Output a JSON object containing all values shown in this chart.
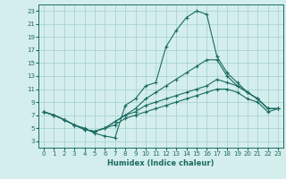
{
  "title": "",
  "xlabel": "Humidex (Indice chaleur)",
  "bg_color": "#d4eeed",
  "grid_color": "#a8d4d0",
  "line_color": "#1a6b60",
  "xlim": [
    -0.5,
    23.5
  ],
  "ylim": [
    2,
    24
  ],
  "xticks": [
    0,
    1,
    2,
    3,
    4,
    5,
    6,
    7,
    8,
    9,
    10,
    11,
    12,
    13,
    14,
    15,
    16,
    17,
    18,
    19,
    20,
    21,
    22,
    23
  ],
  "yticks": [
    3,
    5,
    7,
    9,
    11,
    13,
    15,
    17,
    19,
    21,
    23
  ],
  "curves": [
    {
      "x": [
        0,
        1,
        2,
        3,
        4,
        5,
        6,
        7,
        8,
        9,
        10,
        11,
        12,
        13,
        14,
        15,
        16,
        17,
        18,
        19,
        20,
        21,
        22,
        23
      ],
      "y": [
        7.5,
        7.0,
        6.3,
        5.5,
        5.0,
        4.2,
        3.8,
        3.5,
        8.5,
        9.5,
        11.5,
        12.0,
        17.5,
        20.0,
        22.0,
        23.0,
        22.5,
        16.0,
        13.5,
        12.0,
        10.5,
        9.5,
        8.0,
        8.0
      ]
    },
    {
      "x": [
        0,
        1,
        2,
        3,
        4,
        5,
        6,
        7,
        8,
        9,
        10,
        11,
        12,
        13,
        14,
        15,
        16,
        17,
        18,
        19,
        20,
        21,
        22,
        23
      ],
      "y": [
        7.5,
        7.0,
        6.3,
        5.5,
        4.8,
        4.5,
        5.0,
        6.0,
        7.0,
        8.0,
        9.5,
        10.5,
        11.5,
        12.5,
        13.5,
        14.5,
        15.5,
        15.5,
        13.0,
        11.5,
        10.5,
        9.5,
        8.0,
        8.0
      ]
    },
    {
      "x": [
        0,
        1,
        2,
        3,
        4,
        5,
        6,
        7,
        8,
        9,
        10,
        11,
        12,
        13,
        14,
        15,
        16,
        17,
        18,
        19,
        20,
        21,
        22,
        23
      ],
      "y": [
        7.5,
        7.0,
        6.3,
        5.5,
        4.8,
        4.5,
        5.0,
        6.0,
        7.0,
        7.5,
        8.5,
        9.0,
        9.5,
        10.0,
        10.5,
        11.0,
        11.5,
        12.5,
        12.0,
        11.5,
        10.5,
        9.5,
        8.0,
        8.0
      ]
    },
    {
      "x": [
        0,
        1,
        2,
        3,
        4,
        5,
        6,
        7,
        8,
        9,
        10,
        11,
        12,
        13,
        14,
        15,
        16,
        17,
        18,
        19,
        20,
        21,
        22,
        23
      ],
      "y": [
        7.5,
        7.0,
        6.3,
        5.5,
        4.8,
        4.5,
        5.0,
        5.5,
        6.5,
        7.0,
        7.5,
        8.0,
        8.5,
        9.0,
        9.5,
        10.0,
        10.5,
        11.0,
        11.0,
        10.5,
        9.5,
        9.0,
        7.5,
        8.0
      ]
    }
  ]
}
